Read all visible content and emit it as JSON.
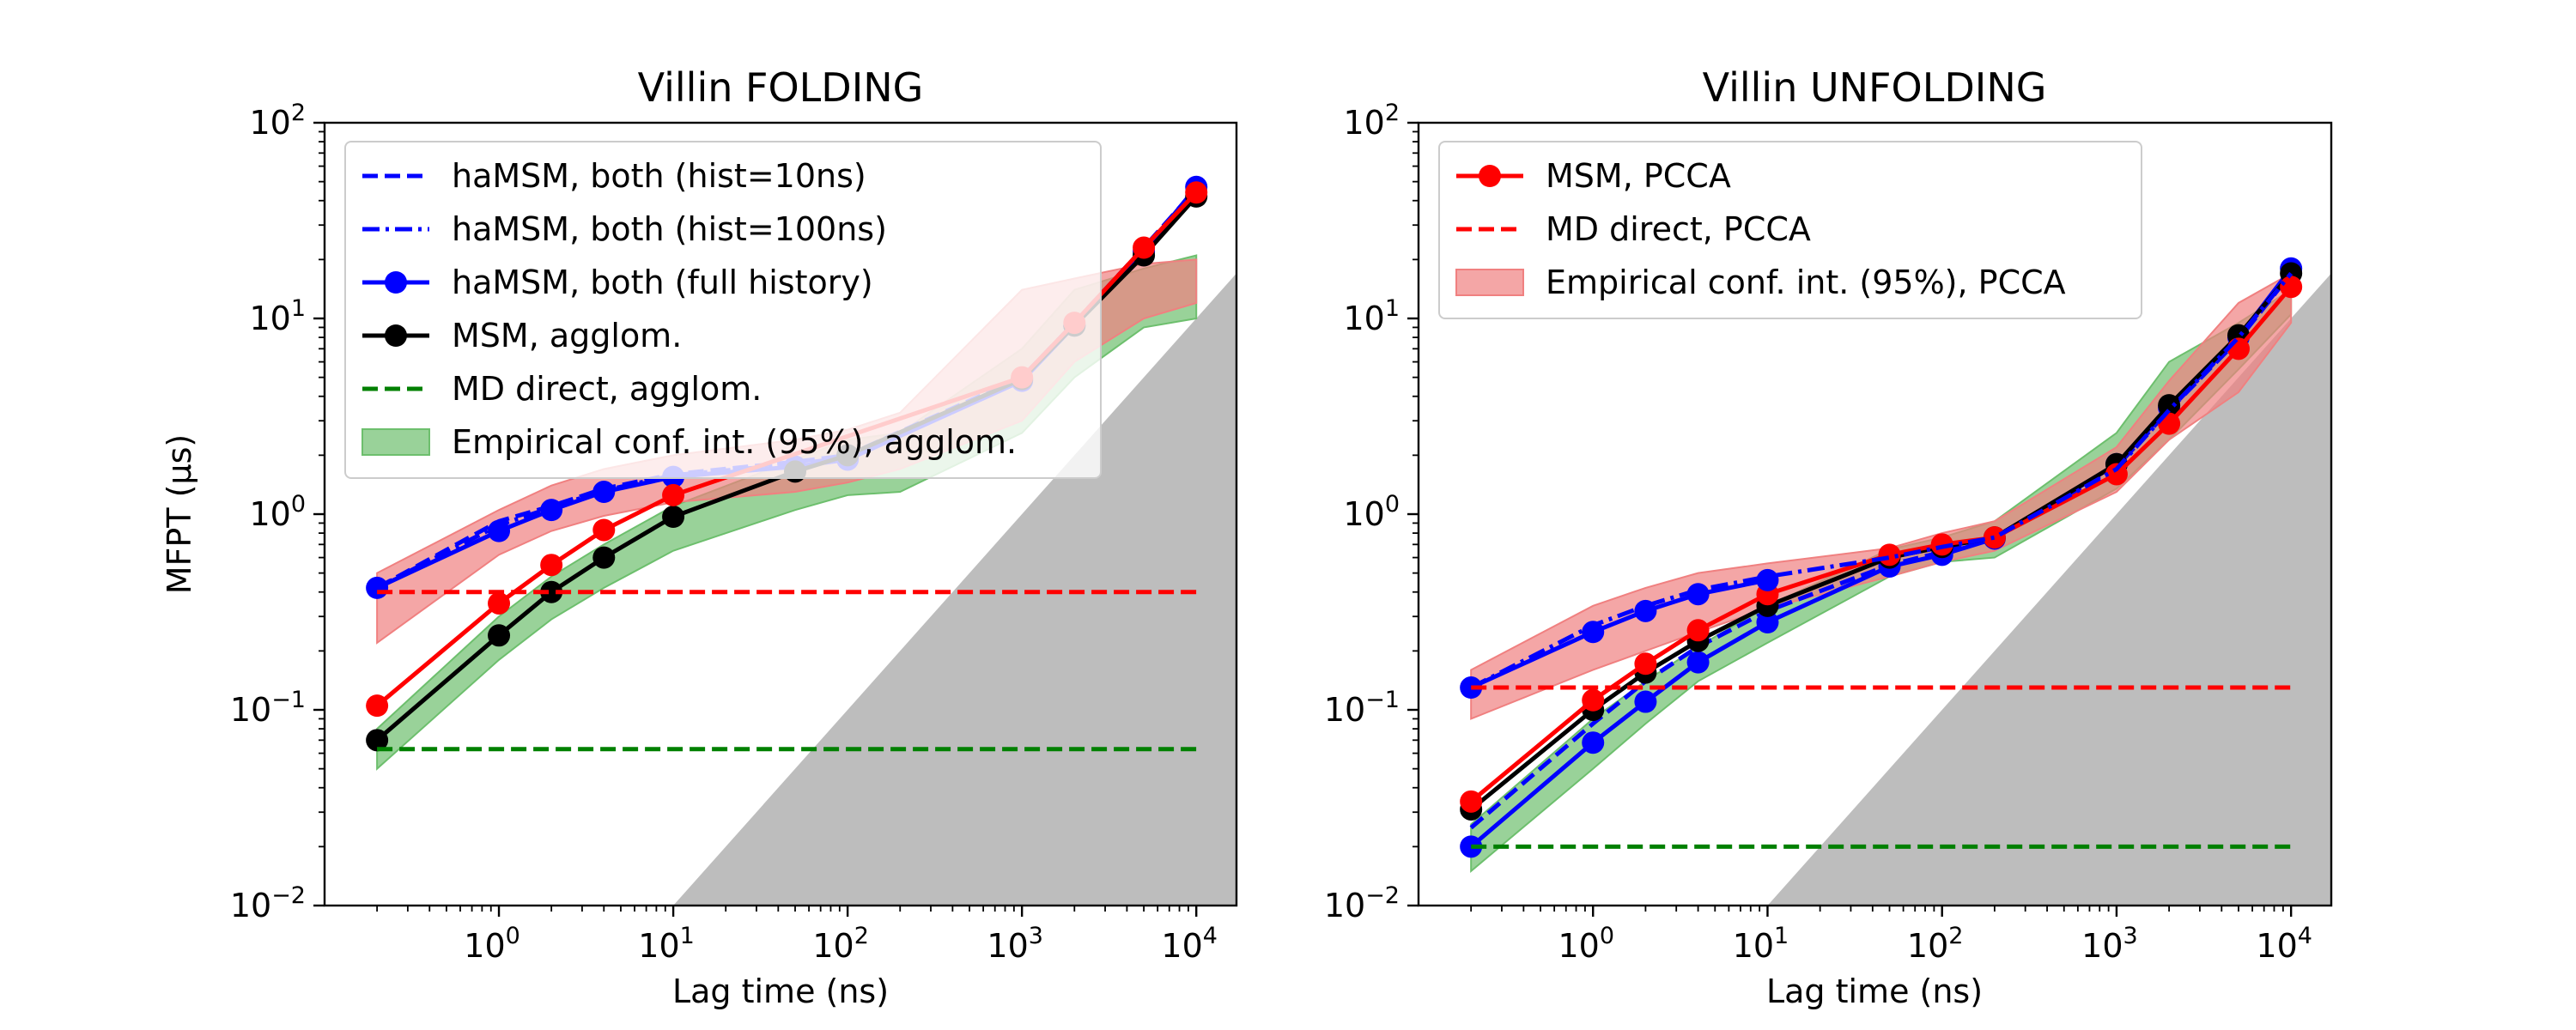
{
  "chart_data": [
    {
      "type": "line",
      "title": "Villin FOLDING",
      "xlabel": "Lag time (ns)",
      "ylabel": "MFPT (μs)",
      "xscale": "log",
      "yscale": "log",
      "xlim": [
        0.1,
        17000
      ],
      "ylim": [
        0.01,
        100
      ],
      "xticks": [
        1,
        10,
        100,
        1000,
        10000
      ],
      "yticks": [
        0.01,
        0.1,
        1,
        10,
        100
      ],
      "grid": false,
      "legend_position": "upper-left",
      "colors": {
        "blue": "#0000ff",
        "black": "#000000",
        "red": "#ff0000",
        "green": "#008000",
        "green_fill": "#6dbf6d",
        "red_fill": "#f08080",
        "shade": "#bdbdbd"
      },
      "shaded_region": {
        "description": "gray triangle where MFPT < lag time",
        "boundary": "y_us = x_ns / 1000"
      },
      "series": [
        {
          "name": "haMSM, both (hist=10ns)",
          "style": "dashed",
          "color": "#0000ff",
          "x": [
            0.2,
            1,
            2,
            4,
            10,
            50,
            100,
            1000,
            2000,
            5000,
            10000
          ],
          "y": [
            0.42,
            0.92,
            1.1,
            1.35,
            1.6,
            1.85,
            2.0,
            5.0,
            9.5,
            23,
            46
          ]
        },
        {
          "name": "haMSM, both (hist=100ns)",
          "style": "dashdot",
          "color": "#0000ff",
          "x": [
            0.2,
            1,
            2,
            4,
            10,
            50,
            100,
            1000,
            2000,
            5000,
            10000
          ],
          "y": [
            0.42,
            0.88,
            1.08,
            1.32,
            1.58,
            1.8,
            1.95,
            4.9,
            9.4,
            22.5,
            46
          ]
        },
        {
          "name": "haMSM, both (full history)",
          "style": "solid-marker",
          "color": "#0000ff",
          "x": [
            0.2,
            1,
            2,
            4,
            10,
            50,
            100,
            1000,
            2000,
            5000,
            10000
          ],
          "y": [
            0.42,
            0.82,
            1.05,
            1.3,
            1.55,
            1.75,
            1.9,
            4.8,
            9.2,
            22,
            47
          ]
        },
        {
          "name": "MSM, agglom.",
          "style": "solid-marker",
          "color": "#000000",
          "x": [
            0.2,
            1,
            2,
            4,
            10,
            50,
            100,
            1000,
            2000,
            5000,
            10000
          ],
          "y": [
            0.07,
            0.24,
            0.4,
            0.6,
            0.97,
            1.65,
            2.0,
            4.9,
            9.2,
            21,
            42
          ]
        },
        {
          "name": "MD direct, agglom.",
          "style": "dashed",
          "color": "#008000",
          "x": [
            0.2,
            10000
          ],
          "y": [
            0.063,
            0.063
          ]
        },
        {
          "name": "Empirical conf. int. (95%), agglom.",
          "style": "band",
          "color": "#6dbf6d",
          "x": [
            0.2,
            1,
            2,
            4,
            10,
            50,
            100,
            200,
            1000,
            2000,
            5000,
            10000
          ],
          "y_low": [
            0.05,
            0.18,
            0.29,
            0.42,
            0.65,
            1.05,
            1.25,
            1.3,
            2.6,
            5.0,
            9.0,
            10.0
          ],
          "y_high": [
            0.08,
            0.3,
            0.48,
            0.7,
            1.1,
            1.9,
            2.4,
            2.6,
            7.0,
            14,
            18,
            21
          ]
        },
        {
          "name": "",
          "style": "solid-marker",
          "color": "#ff0000",
          "x": [
            0.2,
            1,
            2,
            4,
            10,
            1000,
            2000,
            5000,
            10000
          ],
          "y": [
            0.105,
            0.35,
            0.55,
            0.83,
            1.25,
            5.0,
            9.5,
            23,
            44
          ]
        },
        {
          "name": "",
          "style": "dashed",
          "color": "#ff0000",
          "x": [
            0.2,
            10000
          ],
          "y": [
            0.4,
            0.4
          ]
        },
        {
          "name": "",
          "style": "band",
          "color": "#f08080",
          "x": [
            0.2,
            1,
            2,
            4,
            10,
            50,
            100,
            200,
            1000,
            2000,
            5000,
            10000
          ],
          "y_low": [
            0.22,
            0.62,
            0.82,
            0.98,
            1.15,
            1.3,
            1.45,
            1.7,
            3.0,
            6.0,
            10.0,
            12.0
          ],
          "y_high": [
            0.5,
            1.05,
            1.4,
            1.7,
            2.0,
            2.4,
            2.7,
            3.3,
            14,
            16,
            19,
            20
          ]
        }
      ]
    },
    {
      "type": "line",
      "title": "Villin UNFOLDING",
      "xlabel": "Lag time (ns)",
      "ylabel": "",
      "xscale": "log",
      "yscale": "log",
      "xlim": [
        0.1,
        17000
      ],
      "ylim": [
        0.01,
        100
      ],
      "xticks": [
        1,
        10,
        100,
        1000,
        10000
      ],
      "yticks": [
        0.01,
        0.1,
        1,
        10,
        100
      ],
      "grid": false,
      "legend_position": "upper-left",
      "shaded_region": {
        "description": "gray triangle where MFPT < lag time",
        "boundary": "y_us = x_ns / 1000"
      },
      "series": [
        {
          "name": "",
          "style": "band",
          "color": "#6dbf6d",
          "x": [
            0.2,
            1,
            2,
            4,
            10,
            50,
            100,
            200,
            1000,
            2000,
            5000,
            10000
          ],
          "y_low": [
            0.015,
            0.05,
            0.085,
            0.14,
            0.22,
            0.48,
            0.57,
            0.6,
            1.35,
            2.4,
            5.5,
            10.5
          ],
          "y_high": [
            0.026,
            0.09,
            0.14,
            0.21,
            0.34,
            0.66,
            0.76,
            0.92,
            2.6,
            6.0,
            9.5,
            14
          ]
        },
        {
          "name": "",
          "style": "solid-marker",
          "color": "#0000ff",
          "x": [
            0.2,
            1,
            2,
            4,
            10,
            50,
            100,
            200,
            1000,
            2000,
            5000,
            10000
          ],
          "y": [
            0.02,
            0.068,
            0.11,
            0.175,
            0.28,
            0.54,
            0.62,
            0.75,
            1.8,
            3.5,
            8.0,
            18
          ]
        },
        {
          "name": "",
          "style": "dashed",
          "color": "#0000ff",
          "x": [
            0.2,
            1,
            2,
            4,
            10,
            50,
            100,
            200,
            1000,
            2000,
            5000,
            10000
          ],
          "y": [
            0.025,
            0.085,
            0.14,
            0.21,
            0.32,
            0.55,
            0.64,
            0.75,
            1.75,
            3.4,
            7.8,
            17
          ]
        },
        {
          "name": "",
          "style": "solid-marker",
          "color": "#000000",
          "x": [
            0.2,
            1,
            2,
            4,
            10,
            50,
            100,
            200,
            1000,
            2000,
            5000,
            10000
          ],
          "y": [
            0.031,
            0.1,
            0.155,
            0.225,
            0.34,
            0.6,
            0.68,
            0.76,
            1.8,
            3.6,
            8.2,
            17
          ]
        },
        {
          "name": "",
          "style": "dashed",
          "color": "#008000",
          "x": [
            0.2,
            10000
          ],
          "y": [
            0.02,
            0.02
          ]
        },
        {
          "name": "Empirical conf. int. (95%), PCCA",
          "style": "band",
          "color": "#f08080",
          "x": [
            0.2,
            1,
            2,
            4,
            10,
            50,
            100,
            200,
            1000,
            2000,
            5000,
            10000
          ],
          "y_low": [
            0.09,
            0.16,
            0.2,
            0.25,
            0.33,
            0.48,
            0.57,
            0.65,
            1.3,
            2.4,
            4.2,
            9.5
          ],
          "y_high": [
            0.16,
            0.34,
            0.42,
            0.5,
            0.56,
            0.67,
            0.8,
            0.92,
            2.2,
            4.8,
            12,
            17
          ]
        },
        {
          "name": "MSM, PCCA",
          "style": "solid-marker",
          "color": "#ff0000",
          "x": [
            0.2,
            1,
            2,
            4,
            10,
            50,
            100,
            200,
            1000,
            2000,
            5000,
            10000
          ],
          "y": [
            0.034,
            0.112,
            0.172,
            0.255,
            0.39,
            0.62,
            0.7,
            0.76,
            1.6,
            2.9,
            7.0,
            14.5
          ]
        },
        {
          "name": "",
          "style": "dashdot",
          "color": "#0000ff",
          "x": [
            0.2,
            1,
            2,
            4,
            10,
            50,
            100,
            200,
            1000,
            2000,
            5000,
            10000
          ],
          "y": [
            0.13,
            0.27,
            0.34,
            0.41,
            0.48,
            0.6,
            0.68,
            0.76,
            1.7,
            3.4,
            8.0,
            17
          ]
        },
        {
          "name": "",
          "style": "solid-marker",
          "color": "#0000ff",
          "x": [
            0.2,
            1,
            2,
            4,
            10
          ],
          "y": [
            0.13,
            0.25,
            0.32,
            0.39,
            0.46
          ]
        },
        {
          "name": "MD direct, PCCA",
          "style": "dashed",
          "color": "#ff0000",
          "x": [
            0.2,
            10000
          ],
          "y": [
            0.13,
            0.13
          ]
        }
      ]
    }
  ]
}
